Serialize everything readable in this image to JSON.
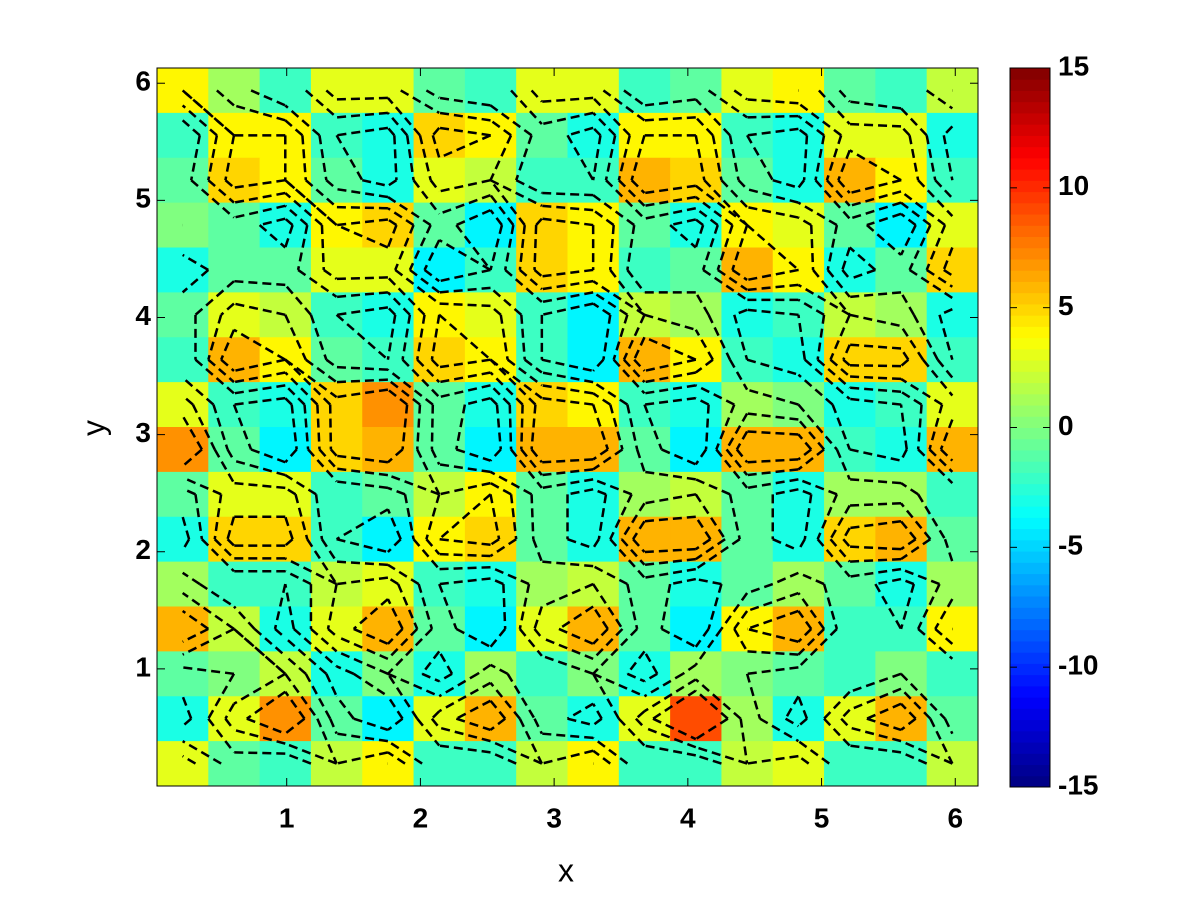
{
  "chart_data": {
    "type": "heatmap",
    "x_label": "x",
    "y_label": "y",
    "xlim": [
      0.03,
      6.17
    ],
    "ylim": [
      0,
      6.13
    ],
    "xticks": [
      1,
      2,
      3,
      4,
      5,
      6
    ],
    "yticks": [
      1,
      2,
      3,
      4,
      5,
      6
    ],
    "clim": [
      -15,
      15
    ],
    "cticks": [
      -15,
      -10,
      -5,
      0,
      5,
      10,
      15
    ],
    "colormap": "jet",
    "contour_levels": [
      -2,
      0,
      2,
      4
    ],
    "contour_color": "#000000",
    "z": [
      [
        4,
        1,
        -2,
        3,
        3,
        -1,
        -2,
        3,
        3,
        -2,
        -1,
        3,
        4,
        -1,
        -2,
        2
      ],
      [
        -2,
        4,
        4,
        -2,
        -3,
        5,
        4,
        -1,
        -3,
        4,
        4,
        -2,
        -3,
        3,
        3,
        -3
      ],
      [
        -1,
        5,
        4,
        -1,
        -3,
        3,
        2,
        -2,
        -2,
        6,
        5,
        -1,
        -3,
        6,
        4,
        -2
      ],
      [
        0,
        -1,
        -3,
        4,
        5,
        -1,
        -4,
        5,
        4,
        -1,
        -3,
        4,
        3,
        -1,
        -4,
        3
      ],
      [
        -3,
        -1,
        -1,
        3,
        3,
        -4,
        -2,
        5,
        4,
        -2,
        -1,
        6,
        4,
        -3,
        -1,
        5
      ],
      [
        -1,
        3,
        2,
        -2,
        -3,
        4,
        3,
        -2,
        -4,
        2,
        1,
        -3,
        -2,
        2,
        1,
        -3
      ],
      [
        -2,
        6,
        4,
        -1,
        -2,
        5,
        4,
        -2,
        -4,
        6,
        4,
        -2,
        -3,
        5,
        5,
        -2
      ],
      [
        3,
        -2,
        -3,
        5,
        7,
        -1,
        -3,
        5,
        4,
        -2,
        -3,
        1,
        0,
        -3,
        -2,
        3
      ],
      [
        7,
        -1,
        -4,
        5,
        6,
        -1,
        -4,
        6,
        6,
        -1,
        -4,
        6,
        6,
        -2,
        -3,
        6
      ],
      [
        -1,
        3,
        3,
        -2,
        -1,
        2,
        4,
        -1,
        -3,
        1,
        2,
        -1,
        -3,
        1,
        1,
        -2
      ],
      [
        -3,
        5,
        5,
        -2,
        -4,
        4,
        5,
        -1,
        -3,
        6,
        6,
        -1,
        -3,
        5,
        6,
        -1
      ],
      [
        1,
        -2,
        -2,
        2,
        3,
        -2,
        -3,
        1,
        2,
        -1,
        -3,
        -1,
        1,
        -1,
        -3,
        1
      ],
      [
        6,
        2,
        -3,
        3,
        6,
        -1,
        -4,
        3,
        6,
        -1,
        -4,
        4,
        6,
        -2,
        -2,
        4
      ],
      [
        -1,
        0,
        2,
        -3,
        0,
        -3,
        1,
        -2,
        0,
        -3,
        1,
        0,
        -1,
        -2,
        0,
        -2
      ],
      [
        -3,
        3,
        7,
        -1,
        -4,
        3,
        6,
        -1,
        -3,
        3,
        9,
        1,
        -3,
        3,
        6,
        -1
      ],
      [
        3,
        -1,
        -2,
        2,
        4,
        -2,
        -2,
        2,
        4,
        -2,
        -2,
        2,
        3,
        -2,
        -2,
        2
      ]
    ]
  }
}
